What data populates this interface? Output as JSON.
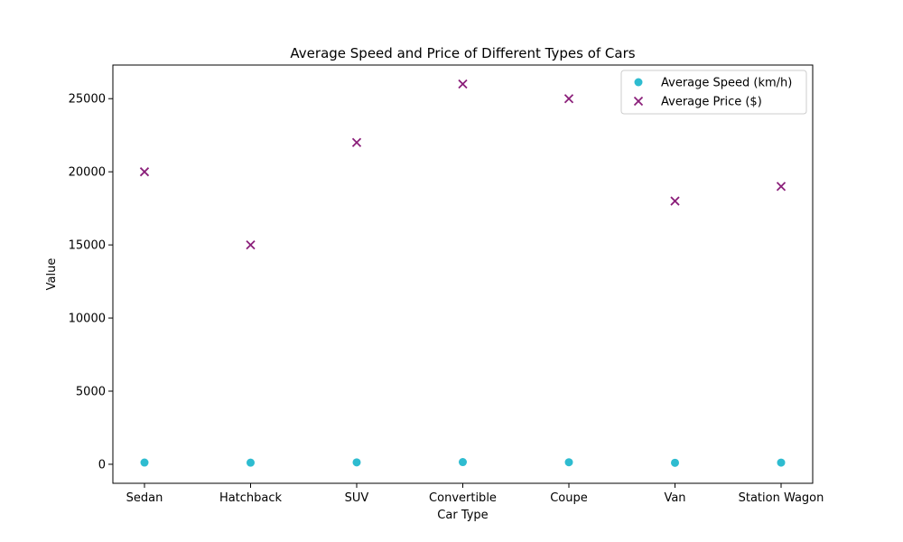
{
  "chart_data": {
    "type": "scatter",
    "title": "Average Speed and Price of Different Types of Cars",
    "xlabel": "Car Type",
    "ylabel": "Value",
    "categories": [
      "Sedan",
      "Hatchback",
      "SUV",
      "Convertible",
      "Coupe",
      "Van",
      "Station Wagon"
    ],
    "ylim": [
      -1300,
      27300
    ],
    "yticks": [
      0,
      5000,
      10000,
      15000,
      20000,
      25000
    ],
    "grid": false,
    "legend_position": "top-right",
    "series": [
      {
        "name": "Average Speed (km/h)",
        "marker": "circle",
        "color": "#2ebcd0",
        "values": [
          120,
          110,
          130,
          150,
          140,
          100,
          115
        ]
      },
      {
        "name": "Average Price ($)",
        "marker": "x",
        "color": "#8b1f7a",
        "values": [
          20000,
          15000,
          22000,
          26000,
          25000,
          18000,
          19000
        ]
      }
    ]
  }
}
